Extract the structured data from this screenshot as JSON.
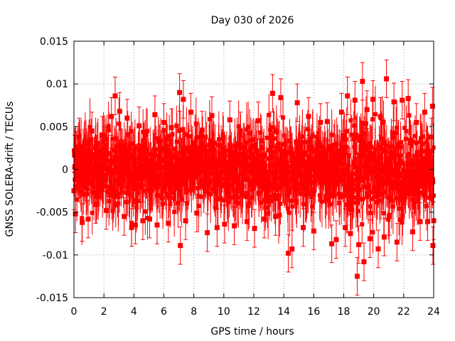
{
  "chart_data": {
    "type": "scatter",
    "title": "Day 030 of 2026",
    "xlabel": "GPS time / hours",
    "ylabel": "GNSS SOLERA-drift / TECUs",
    "xlim": [
      0,
      24
    ],
    "ylim": [
      -0.015,
      0.015
    ],
    "x_ticks": [
      "0",
      "2",
      "4",
      "6",
      "8",
      "10",
      "12",
      "14",
      "16",
      "18",
      "20",
      "22",
      "24"
    ],
    "y_ticks": [
      "-0.015",
      "-0.01",
      "-0.005",
      "0",
      "0.005",
      "0.01",
      "0.015"
    ],
    "grid": true,
    "legend": "none",
    "series": [
      {
        "color": "#ff0000",
        "marker": "square",
        "error_bars": true,
        "x_step_hours": 0.0167,
        "points": [
          [
            0.0,
            -0.0025
          ],
          [
            0.05,
            0.0018
          ],
          [
            0.1,
            -0.0052
          ],
          [
            0.15,
            0.0022
          ],
          [
            0.35,
            0.0038
          ],
          [
            0.55,
            -0.0062
          ],
          [
            0.95,
            -0.0058
          ],
          [
            1.2,
            0.0045
          ],
          [
            1.45,
            -0.0041
          ],
          [
            1.9,
            0.004
          ],
          [
            2.15,
            -0.0048
          ],
          [
            2.5,
            0.0062
          ],
          [
            2.75,
            0.0086
          ],
          [
            3.05,
            0.0068
          ],
          [
            3.35,
            -0.0055
          ],
          [
            3.55,
            0.006
          ],
          [
            3.85,
            -0.0068
          ],
          [
            4.1,
            -0.0065
          ],
          [
            4.35,
            0.0051
          ],
          [
            4.6,
            -0.006
          ],
          [
            5.05,
            -0.0058
          ],
          [
            5.4,
            0.0064
          ],
          [
            5.55,
            -0.0065
          ],
          [
            6.0,
            0.0055
          ],
          [
            6.3,
            -0.0063
          ],
          [
            6.5,
            0.0049
          ],
          [
            7.05,
            0.009
          ],
          [
            7.1,
            -0.0089
          ],
          [
            7.3,
            0.0082
          ],
          [
            7.45,
            -0.006
          ],
          [
            7.8,
            0.0067
          ],
          [
            8.2,
            -0.0051
          ],
          [
            8.55,
            0.0046
          ],
          [
            8.9,
            -0.0074
          ],
          [
            9.2,
            0.0063
          ],
          [
            9.55,
            -0.0068
          ],
          [
            10.05,
            -0.0064
          ],
          [
            10.4,
            0.0058
          ],
          [
            10.7,
            -0.0066
          ],
          [
            11.1,
            0.0045
          ],
          [
            11.55,
            -0.0061
          ],
          [
            12.05,
            -0.0069
          ],
          [
            12.3,
            0.0057
          ],
          [
            12.7,
            -0.0058
          ],
          [
            13.25,
            0.0089
          ],
          [
            13.45,
            -0.0055
          ],
          [
            13.8,
            0.0084
          ],
          [
            14.3,
            -0.0098
          ],
          [
            14.55,
            -0.0093
          ],
          [
            14.9,
            0.0078
          ],
          [
            15.3,
            -0.0068
          ],
          [
            15.65,
            0.0062
          ],
          [
            16.0,
            -0.0072
          ],
          [
            16.45,
            0.0055
          ],
          [
            16.9,
            0.0056
          ],
          [
            17.2,
            -0.0087
          ],
          [
            17.5,
            -0.0082
          ],
          [
            17.85,
            0.0067
          ],
          [
            18.1,
            -0.0068
          ],
          [
            18.25,
            0.0086
          ],
          [
            18.45,
            -0.0075
          ],
          [
            18.75,
            0.0081
          ],
          [
            18.9,
            -0.0125
          ],
          [
            19.0,
            -0.0088
          ],
          [
            19.25,
            0.0103
          ],
          [
            19.35,
            -0.0108
          ],
          [
            19.55,
            0.007
          ],
          [
            19.75,
            -0.0081
          ],
          [
            19.95,
            0.0082
          ],
          [
            20.3,
            -0.0093
          ],
          [
            20.45,
            0.0062
          ],
          [
            20.7,
            -0.0079
          ],
          [
            20.85,
            0.0106
          ],
          [
            21.05,
            -0.0055
          ],
          [
            21.35,
            0.0079
          ],
          [
            21.55,
            -0.0085
          ],
          [
            21.9,
            0.0081
          ],
          [
            22.3,
            0.0083
          ],
          [
            22.6,
            -0.0073
          ],
          [
            22.85,
            0.0055
          ],
          [
            23.1,
            -0.0061
          ],
          [
            23.4,
            0.0067
          ],
          [
            23.6,
            -0.0061
          ],
          [
            23.85,
            0.0038
          ],
          [
            23.92,
            0.0074
          ],
          [
            23.95,
            -0.0089
          ],
          [
            24.0,
            -0.006
          ]
        ]
      }
    ]
  }
}
